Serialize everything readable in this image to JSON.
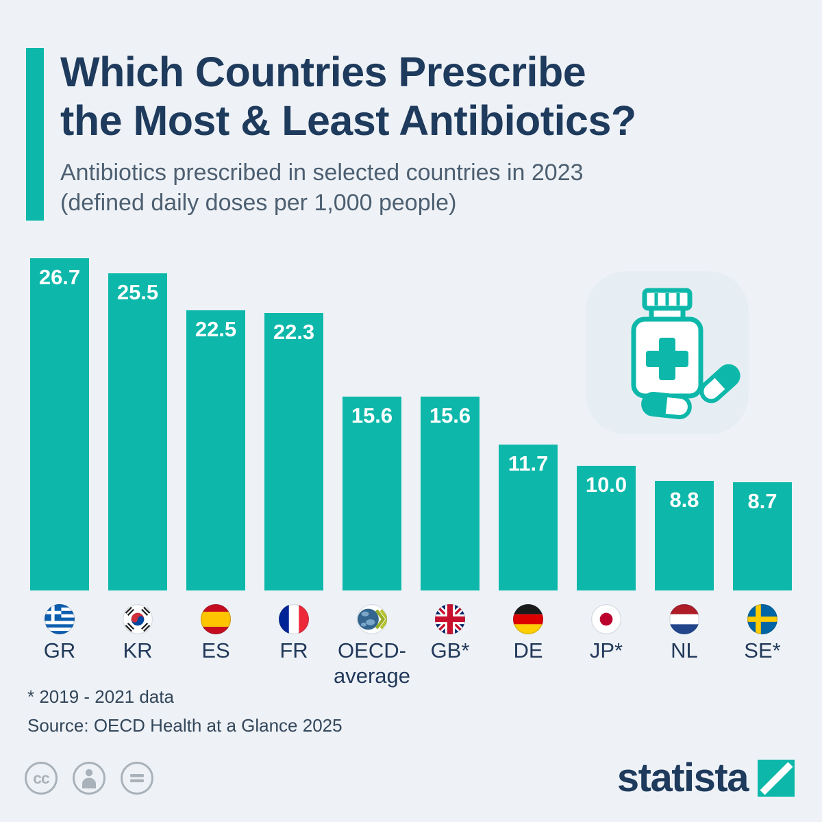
{
  "colors": {
    "background": "#eef2f6",
    "accent_teal": "#0db8aa",
    "title_navy": "#1e3a5c",
    "subtitle_gray": "#4d5f71",
    "value_label_white": "#ffffff",
    "footer_text": "#33465a",
    "license_icon_gray": "#a9b2ba"
  },
  "header": {
    "title_line1": "Which Countries Prescribe",
    "title_line2": "the Most & Least Antibiotics?",
    "subtitle_line1": "Antibiotics prescribed in selected countries in 2023",
    "subtitle_line2": "(defined daily doses per 1,000 people)"
  },
  "chart_data": {
    "type": "bar",
    "title": "Antibiotics prescribed in selected countries in 2023",
    "unit": "defined daily doses per 1,000 people",
    "year": "2023",
    "categories": [
      "GR",
      "KR",
      "ES",
      "FR",
      "OECD-average",
      "GB*",
      "DE",
      "JP*",
      "NL",
      "SE*"
    ],
    "category_lines": [
      [
        "GR"
      ],
      [
        "KR"
      ],
      [
        "ES"
      ],
      [
        "FR"
      ],
      [
        "OECD-",
        "average"
      ],
      [
        "GB*"
      ],
      [
        "DE"
      ],
      [
        "JP*"
      ],
      [
        "NL"
      ],
      [
        "SE*"
      ]
    ],
    "values": [
      26.7,
      25.5,
      22.5,
      22.3,
      15.6,
      15.6,
      11.7,
      10.0,
      8.8,
      8.7
    ],
    "value_labels": [
      "26.7",
      "25.5",
      "22.5",
      "22.3",
      "15.6",
      "15.6",
      "11.7",
      "10.0",
      "8.8",
      "8.7"
    ],
    "flags": [
      "gr",
      "kr",
      "es",
      "fr",
      "oecd",
      "gb",
      "de",
      "jp",
      "nl",
      "se"
    ],
    "bar_color": "#0db8aa",
    "ylim": [
      0,
      26.7
    ],
    "grid": false,
    "legend": false
  },
  "footer": {
    "footnote": "* 2019 - 2021 data",
    "source": "Source: OECD Health at a Glance 2025",
    "brand": "statista",
    "license_cc_label": "cc"
  }
}
